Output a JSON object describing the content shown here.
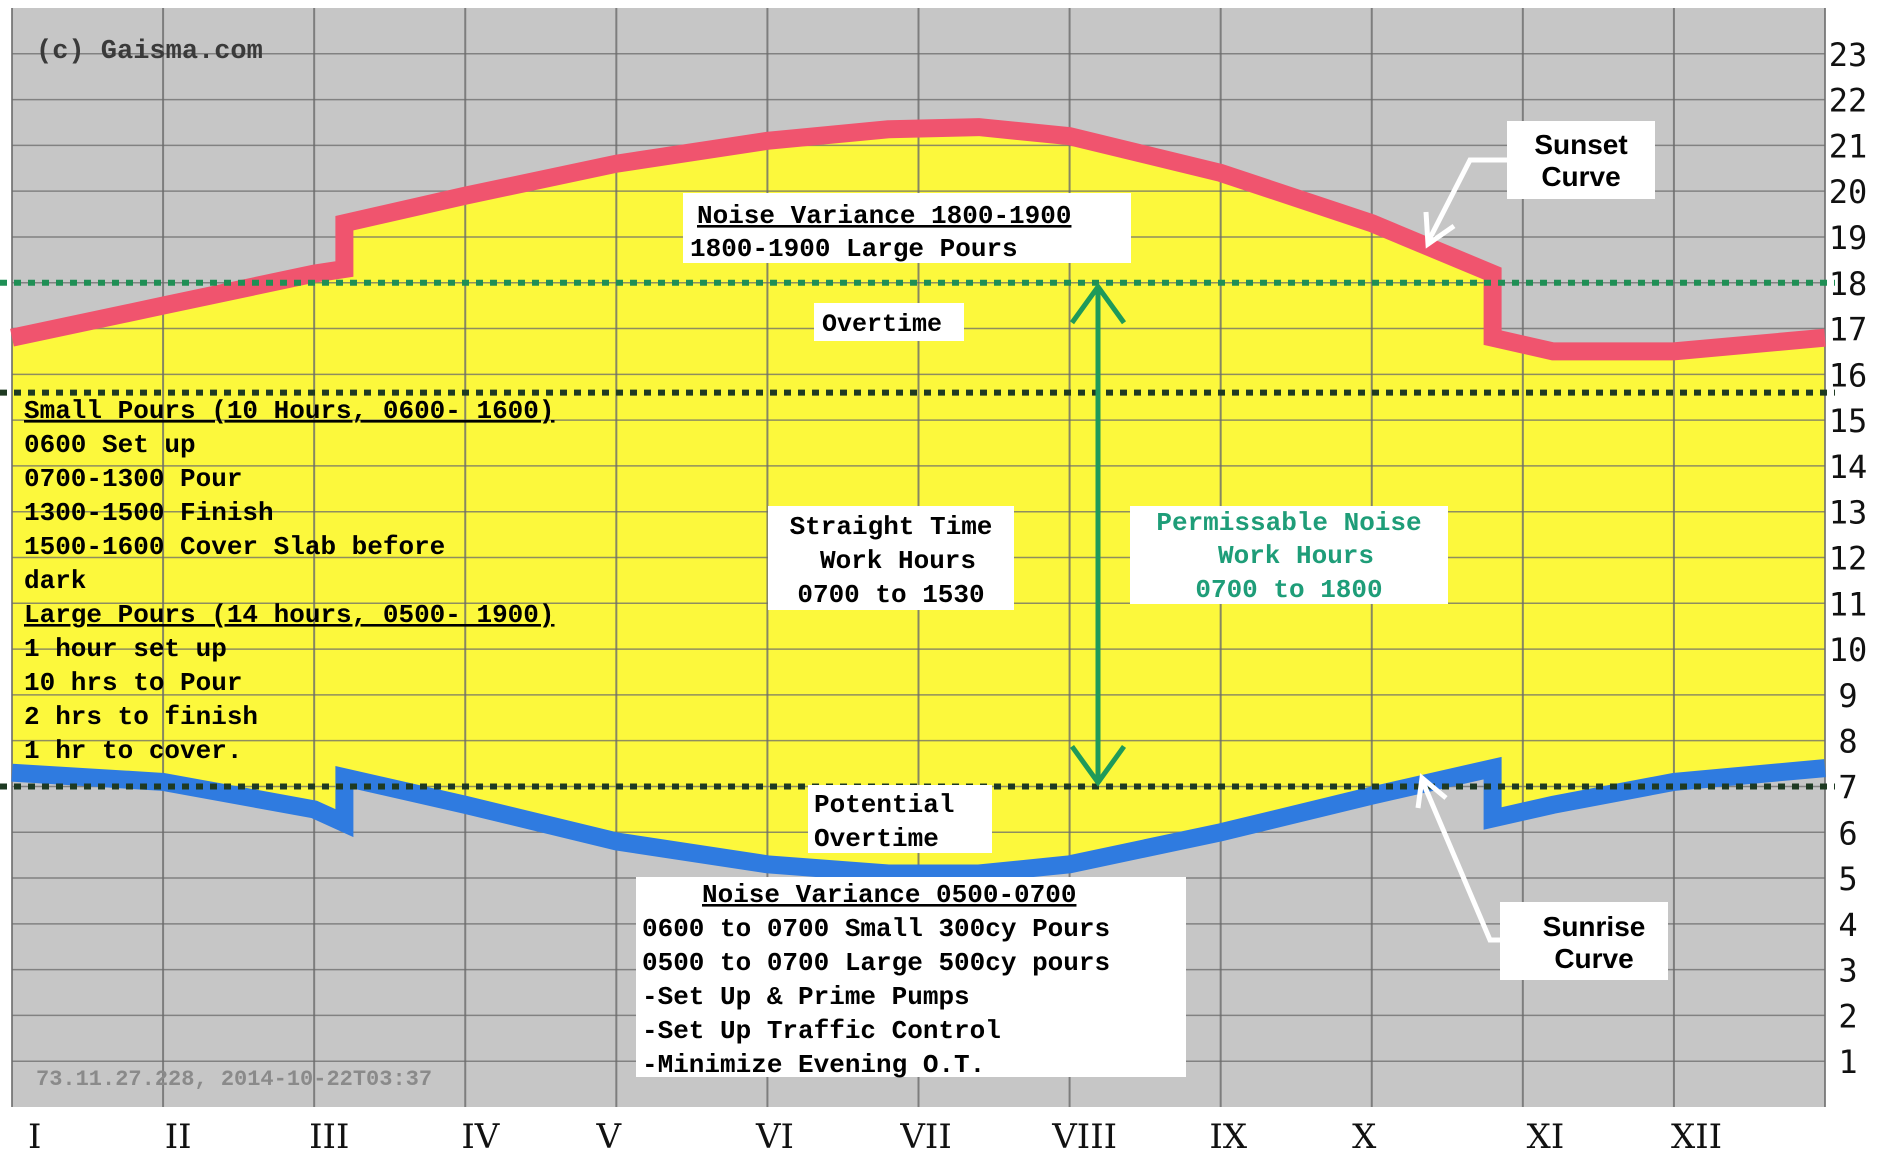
{
  "chart_data": {
    "type": "area",
    "title": "",
    "xlabel": "",
    "ylabel": "",
    "ylim": [
      0,
      24
    ],
    "grid": true,
    "watermark": "(c) Gaisma.com",
    "footer_stamp": "73.11.27.228, 2014-10-22T03:37",
    "month_labels": [
      "I",
      "II",
      "III",
      "IV",
      "V",
      "VI",
      "VII",
      "VIII",
      "IX",
      "X",
      "XI",
      "XII"
    ],
    "y_ticks": [
      1,
      2,
      3,
      4,
      5,
      6,
      7,
      8,
      9,
      10,
      11,
      12,
      13,
      14,
      15,
      16,
      17,
      18,
      19,
      20,
      21,
      22,
      23
    ],
    "x_domain": [
      0,
      12
    ],
    "series": [
      {
        "name": "Sunset Curve",
        "color": "#f0546e",
        "x": [
          0,
          1,
          2,
          2.2,
          2.2,
          3,
          4,
          5,
          5.8,
          6.4,
          7,
          8,
          9,
          9.8,
          9.8,
          10.2,
          11,
          12
        ],
        "y": [
          16.8,
          17.5,
          18.2,
          18.3,
          19.3,
          19.9,
          20.6,
          21.1,
          21.35,
          21.4,
          21.2,
          20.4,
          19.3,
          18.2,
          16.8,
          16.5,
          16.5,
          16.8
        ]
      },
      {
        "name": "Sunrise Curve",
        "color": "#2f7be0",
        "x": [
          0,
          1,
          2,
          2.2,
          2.2,
          3,
          4,
          5,
          5.8,
          6.4,
          7,
          8,
          9,
          9.8,
          9.8,
          10.2,
          11,
          12
        ],
        "y": [
          7.3,
          7.1,
          6.5,
          6.2,
          7.2,
          6.6,
          5.8,
          5.3,
          5.1,
          5.1,
          5.3,
          6.0,
          6.8,
          7.4,
          6.3,
          6.6,
          7.1,
          7.4
        ]
      }
    ],
    "fill_color": "#fcf83c",
    "background_color": "#c6c6c6",
    "reference_lines": [
      {
        "y": 18.0,
        "color": "#1f8f55",
        "style": "dotted"
      },
      {
        "y": 15.6,
        "color": "#1e3a22",
        "style": "dotted"
      },
      {
        "y": 7.0,
        "color": "#1e3a22",
        "style": "dotted"
      }
    ],
    "arrow_range": {
      "from": 7,
      "to": 18,
      "color": "#1f9a5a"
    }
  },
  "annotations": {
    "noise_variance_evening": {
      "title": "Noise Variance 1800-1900",
      "line": "1800-1900 Large Pours"
    },
    "overtime": "Overtime",
    "small_pours": {
      "title": "Small Pours (10 Hours, 0600- 1600)",
      "lines": [
        "0600 Set up",
        "0700-1300 Pour",
        "1300-1500 Finish",
        "1500-1600 Cover Slab before",
        "dark"
      ]
    },
    "large_pours": {
      "title": "Large Pours (14 hours, 0500- 1900)",
      "lines": [
        "1 hour set up",
        "10 hrs to Pour",
        "2 hrs to finish",
        "1 hr to cover."
      ]
    },
    "straight_time": [
      "Straight Time",
      "Work Hours",
      "0700 to 1530"
    ],
    "permissable": [
      "Permissable Noise",
      "Work Hours",
      "0700 to 1800"
    ],
    "potential_overtime": [
      "Potential",
      "Overtime"
    ],
    "noise_variance_morning": {
      "title": "Noise Variance 0500-0700",
      "lines": [
        "0600 to 0700 Small 300cy Pours",
        "0500 to 0700 Large 500cy pours",
        "-Set Up & Prime Pumps",
        "-Set Up Traffic Control",
        "-Minimize Evening O.T."
      ]
    },
    "sunset_label": [
      "Sunset",
      "Curve"
    ],
    "sunrise_label": [
      "Sunrise",
      "Curve"
    ]
  }
}
